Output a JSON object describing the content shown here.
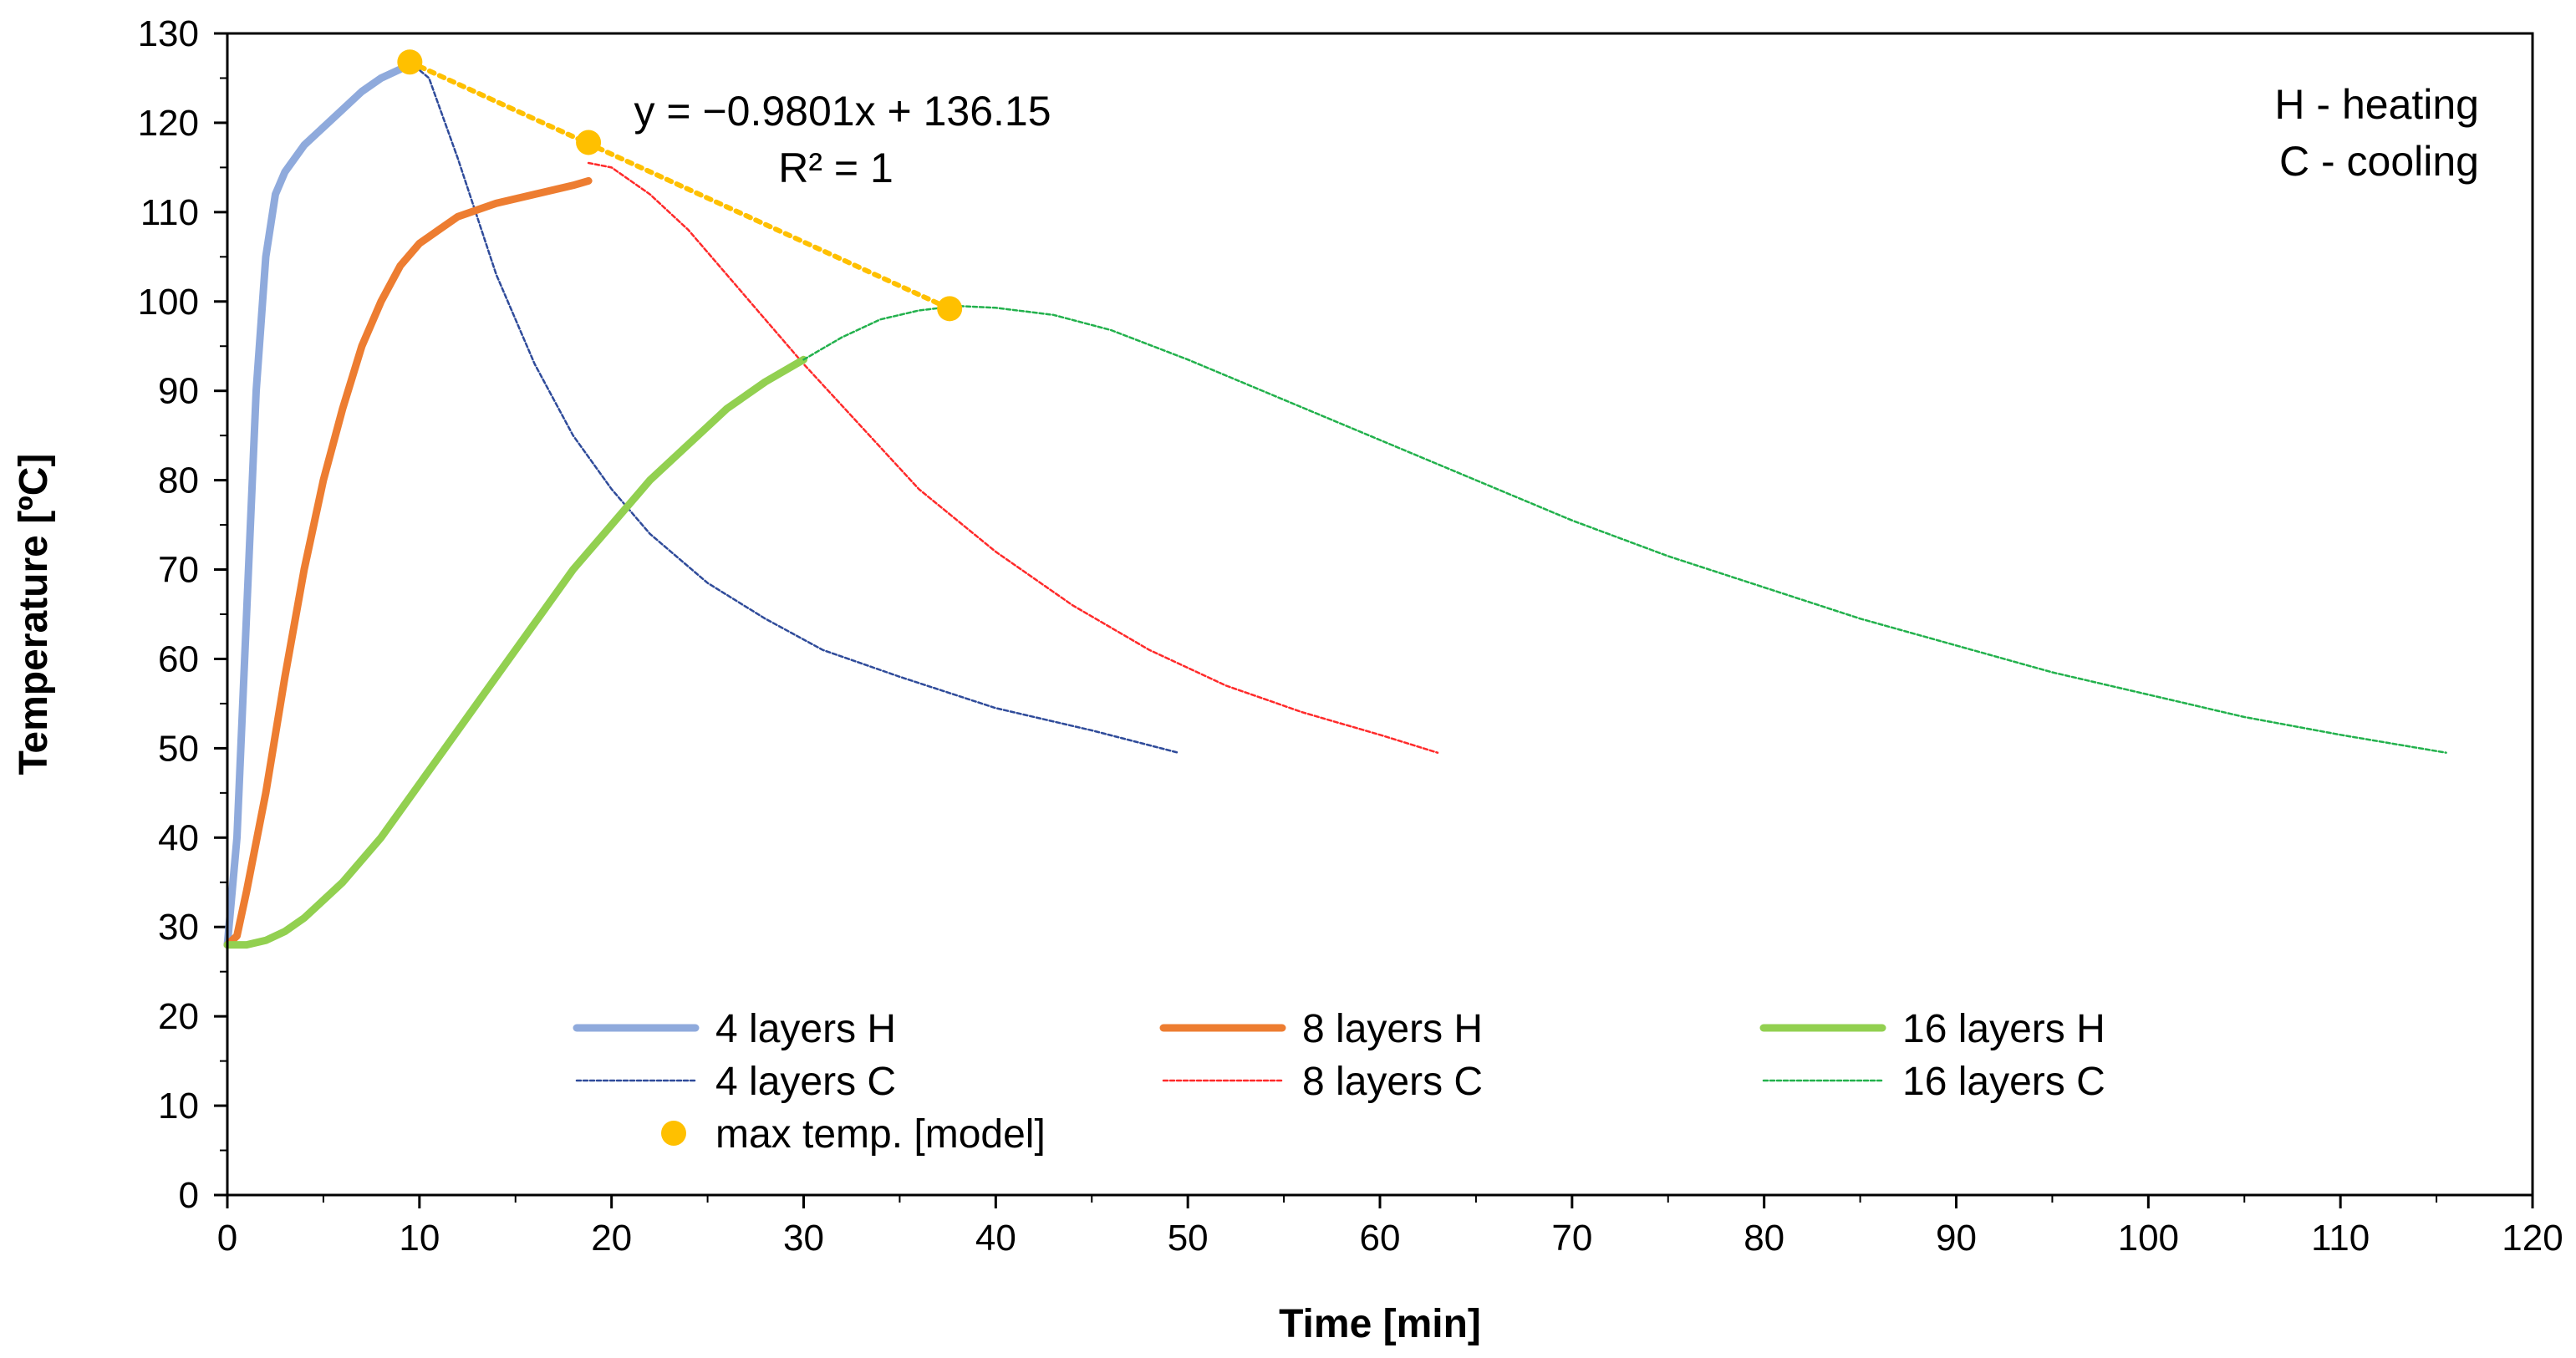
{
  "chart_data": {
    "type": "line",
    "xlabel": "Time [min]",
    "ylabel": "Temperature [ºC]",
    "xlim": [
      0,
      120
    ],
    "ylim": [
      0,
      130
    ],
    "xticks": [
      0,
      10,
      20,
      30,
      40,
      50,
      60,
      70,
      80,
      90,
      100,
      110,
      120
    ],
    "yticks": [
      0,
      10,
      20,
      30,
      40,
      50,
      60,
      70,
      80,
      90,
      100,
      110,
      120,
      130
    ],
    "grid": false,
    "legend_position": "bottom-center",
    "series": [
      {
        "name": "4 layers H",
        "style": "solid-thick",
        "color": "#8FAADC",
        "x": [
          0,
          0.5,
          1,
          1.5,
          2,
          2.5,
          3,
          3.5,
          4,
          5,
          6,
          7,
          8,
          9,
          9.5
        ],
        "y": [
          28,
          40,
          65,
          90,
          105,
          112,
          114.5,
          116,
          117.5,
          119.5,
          121.5,
          123.5,
          125,
          126,
          126.8
        ]
      },
      {
        "name": "4 layers C",
        "style": "dashed-thin",
        "color": "#2F4B9A",
        "x": [
          9.5,
          10.5,
          12,
          14,
          16,
          18,
          20,
          22,
          25,
          28,
          31,
          35,
          40,
          45,
          49.5
        ],
        "y": [
          126.8,
          125,
          116,
          103,
          93,
          85,
          79,
          74,
          68.5,
          64.5,
          61,
          58,
          54.5,
          52,
          49.5
        ]
      },
      {
        "name": "8 layers H",
        "style": "solid-thick",
        "color": "#ED7D31",
        "x": [
          0,
          0.5,
          1,
          2,
          3,
          4,
          5,
          6,
          7,
          8,
          9,
          10,
          11,
          12,
          14,
          16,
          18,
          18.8
        ],
        "y": [
          28,
          29,
          34,
          45,
          58,
          70,
          80,
          88,
          95,
          100,
          104,
          106.5,
          108,
          109.5,
          111,
          112,
          113,
          113.5
        ]
      },
      {
        "name": "8 layers C",
        "style": "dashed-thin",
        "color": "#FF2A2A",
        "x": [
          18.8,
          20,
          22,
          24,
          26,
          28,
          30,
          33,
          36,
          40,
          44,
          48,
          52,
          56,
          60,
          63
        ],
        "y": [
          115.5,
          115,
          112,
          108,
          103,
          98,
          93,
          86,
          79,
          72,
          66,
          61,
          57,
          54,
          51.5,
          49.5
        ]
      },
      {
        "name": "16 layers H",
        "style": "solid-thick",
        "color": "#92D050",
        "x": [
          0,
          1,
          2,
          3,
          4,
          5,
          6,
          8,
          10,
          12,
          14,
          16,
          18,
          20,
          22,
          24,
          26,
          28,
          30
        ],
        "y": [
          28,
          28,
          28.5,
          29.5,
          31,
          33,
          35,
          40,
          46,
          52,
          58,
          64,
          70,
          75,
          80,
          84,
          88,
          91,
          93.5
        ]
      },
      {
        "name": "16 layers C",
        "style": "dashed-thin",
        "color": "#22B14C",
        "x": [
          30,
          32,
          34,
          36,
          38,
          40,
          43,
          46,
          50,
          55,
          60,
          65,
          70,
          75,
          80,
          85,
          90,
          95,
          100,
          105,
          110,
          115.5
        ],
        "y": [
          93.5,
          96,
          98,
          99,
          99.5,
          99.3,
          98.5,
          96.8,
          93.5,
          89,
          84.5,
          80,
          75.5,
          71.5,
          68,
          64.5,
          61.5,
          58.5,
          56,
          53.5,
          51.5,
          49.5
        ]
      }
    ],
    "model_points": {
      "name": "max temp. [model]",
      "color": "#FFC000",
      "x": [
        9.5,
        18.8,
        37.6
      ],
      "y": [
        126.8,
        117.8,
        99.2
      ]
    },
    "trendline": {
      "equation": "y = −0.9801x + 136.15",
      "r2": "R² = 1",
      "color": "#FFC000",
      "x": [
        9.5,
        37.6
      ],
      "y": [
        126.8,
        99.2
      ]
    },
    "annotation": {
      "line1": "H - heating",
      "line2": "C - cooling"
    }
  }
}
